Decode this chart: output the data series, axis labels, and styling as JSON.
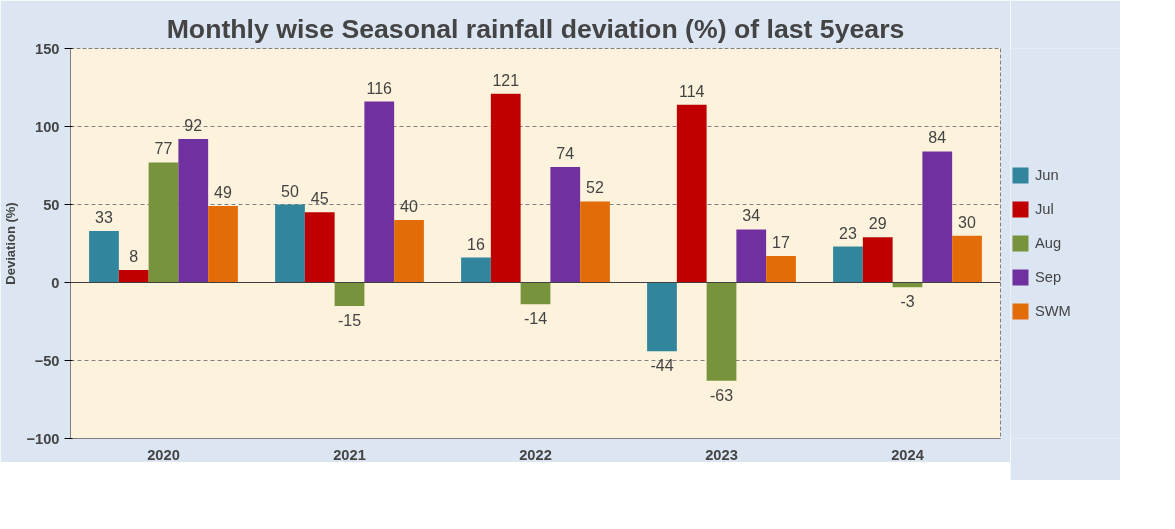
{
  "chart_data": {
    "type": "bar",
    "title": "Monthly wise Seasonal rainfall deviation (%) of last 5years",
    "ylabel": "Deviation (%)",
    "categories": [
      "2020",
      "2021",
      "2022",
      "2023",
      "2024"
    ],
    "series": [
      {
        "name": "Jun",
        "color": "#31859c",
        "values": [
          33,
          50,
          16,
          -44,
          23
        ]
      },
      {
        "name": "Jul",
        "color": "#c00000",
        "values": [
          8,
          45,
          121,
          114,
          29
        ]
      },
      {
        "name": "Aug",
        "color": "#77933c",
        "values": [
          77,
          -15,
          -14,
          -63,
          -3
        ]
      },
      {
        "name": "Sep",
        "color": "#7030a0",
        "values": [
          92,
          116,
          74,
          34,
          84
        ]
      },
      {
        "name": "SWM",
        "color": "#e36c09",
        "values": [
          49,
          40,
          52,
          17,
          30
        ]
      }
    ],
    "ylim": [
      -100,
      150
    ],
    "yticks": [
      -100,
      -50,
      0,
      50,
      100,
      150
    ],
    "grid": "y",
    "legend": "right",
    "data_labels": true
  }
}
